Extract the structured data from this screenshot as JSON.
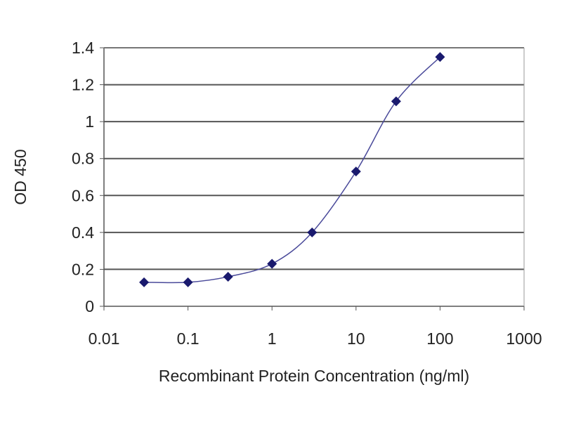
{
  "chart_data": {
    "type": "line",
    "title": "",
    "xlabel": "Recombinant Protein Concentration (ng/ml)",
    "ylabel": "OD 450",
    "x_scale": "log",
    "xlim": [
      0.01,
      1000
    ],
    "ylim": [
      0,
      1.4
    ],
    "x_ticks": [
      "0.01",
      "0.1",
      "1",
      "10",
      "100",
      "1000"
    ],
    "y_ticks": [
      "0",
      "0.2",
      "0.4",
      "0.6",
      "0.8",
      "1",
      "1.2",
      "1.4"
    ],
    "grid": "horizontal",
    "series": [
      {
        "x": [
          0.03,
          0.1,
          0.3,
          1,
          3,
          10,
          30,
          100
        ],
        "y": [
          0.13,
          0.13,
          0.16,
          0.23,
          0.4,
          0.73,
          1.11,
          1.35
        ]
      }
    ],
    "colors": {
      "series": "#1a1a6e",
      "line": "#4a4a9a",
      "grid": "#555555"
    }
  }
}
